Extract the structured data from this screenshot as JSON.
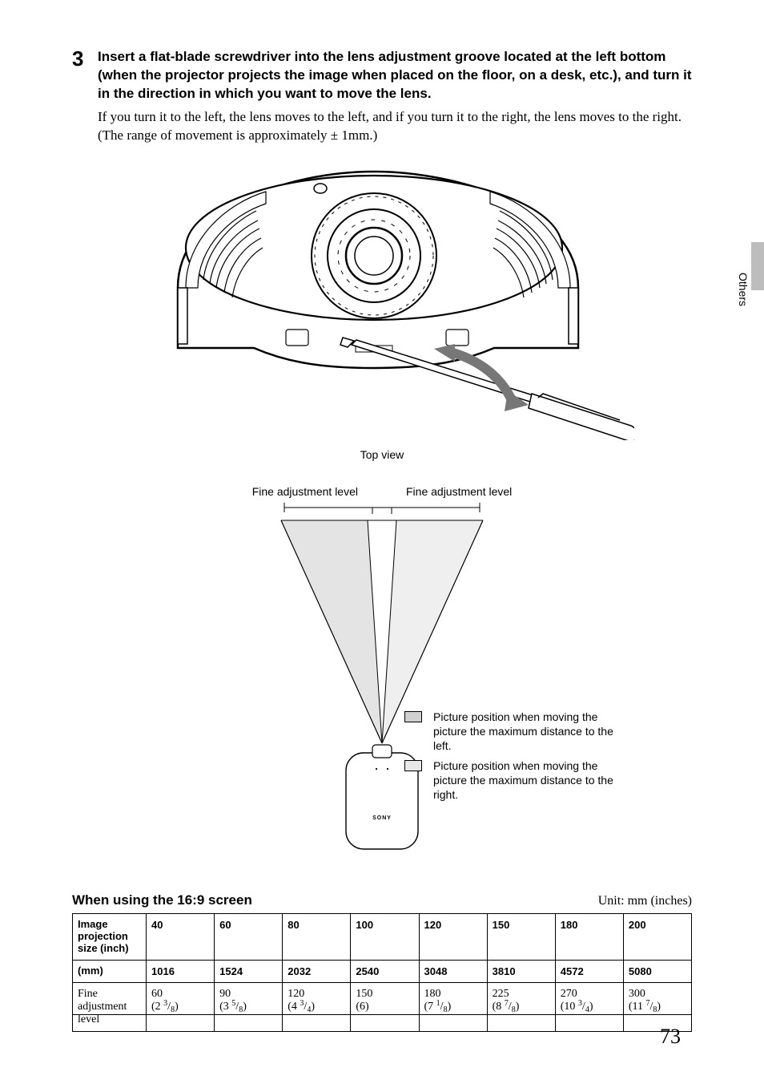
{
  "step": {
    "number": "3",
    "heading": "Insert a flat-blade screwdriver into the lens adjustment groove located at the left bottom (when the projector projects the image when placed on the floor, on a desk, etc.), and turn it in the direction in which you want to move the lens.",
    "body": "If you turn it to the left, the lens moves to the left, and if you turn it to the right, the lens moves to the right. (The range of movement is approximately ± 1mm.)"
  },
  "side_label": "Others",
  "figure1": {
    "caption": "Top view"
  },
  "figure2": {
    "label_left": "Fine adjustment level",
    "label_right": "Fine adjustment level",
    "brand": "SONY"
  },
  "legend": {
    "item1": "Picture position when moving the picture the maximum distance to the left.",
    "item2": "Picture position when moving the picture the maximum distance to the right.",
    "swatch1_color": "#d0d0d0",
    "swatch2_color": "#e8e8e8"
  },
  "table": {
    "title": "When using the 16:9 screen",
    "unit": "Unit: mm (inches)",
    "row1_label": "Image projection size (inch)",
    "row2_label": "(mm)",
    "row3_label": "Fine adjustment level",
    "cols_inch": [
      "40",
      "60",
      "80",
      "100",
      "120",
      "150",
      "180",
      "200"
    ],
    "cols_mm": [
      "1016",
      "1524",
      "2032",
      "2540",
      "3048",
      "3810",
      "4572",
      "5080"
    ],
    "fine": [
      {
        "mm": "60",
        "in_whole": "2",
        "num": "3",
        "den": "8"
      },
      {
        "mm": "90",
        "in_whole": "3",
        "num": "5",
        "den": "8"
      },
      {
        "mm": "120",
        "in_whole": "4",
        "num": "3",
        "den": "4"
      },
      {
        "mm": "150",
        "in_whole": "6",
        "num": "",
        "den": ""
      },
      {
        "mm": "180",
        "in_whole": "7",
        "num": "1",
        "den": "8"
      },
      {
        "mm": "225",
        "in_whole": "8",
        "num": "7",
        "den": "8"
      },
      {
        "mm": "270",
        "in_whole": "10",
        "num": "3",
        "den": "4"
      },
      {
        "mm": "300",
        "in_whole": "11",
        "num": "7",
        "den": "8"
      }
    ]
  },
  "page_number": "73"
}
